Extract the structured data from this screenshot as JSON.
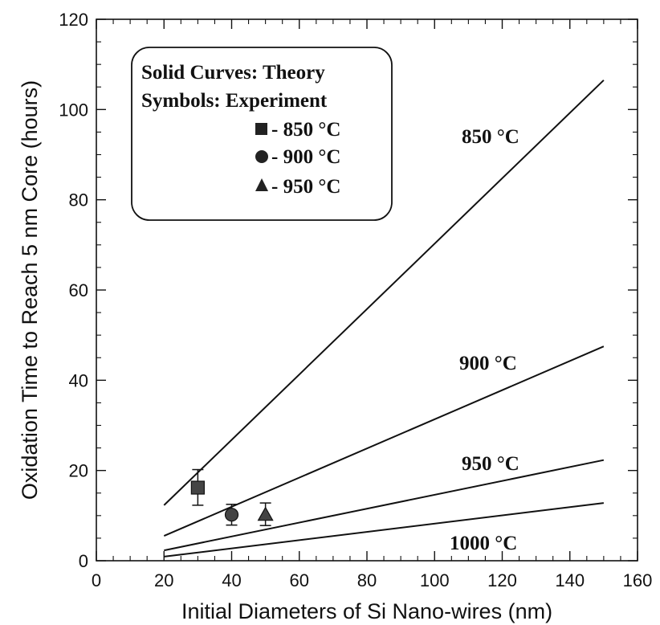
{
  "chart_data": {
    "type": "line",
    "xlabel": "Initial Diameters of Si Nano-wires  (nm)",
    "ylabel": "Oxidation Time to Reach 5 nm Core  (hours)",
    "xlim": [
      0,
      160
    ],
    "ylim": [
      0,
      120
    ],
    "x_ticks": [
      0,
      20,
      40,
      60,
      80,
      100,
      120,
      140,
      160
    ],
    "y_ticks": [
      0,
      20,
      40,
      60,
      80,
      100,
      120
    ],
    "grid": false,
    "legend": {
      "placement": "top-left",
      "line1": "Solid Curves:  Theory",
      "line2": "Symbols:  Experiment",
      "entries": [
        {
          "marker": "square",
          "label": "- 850 °C"
        },
        {
          "marker": "circle",
          "label": "- 900 °C"
        },
        {
          "marker": "triangle",
          "label": "- 950 °C"
        }
      ]
    },
    "series": [
      {
        "name": "850 °C",
        "x": [
          20,
          150
        ],
        "y": [
          12.3,
          106.5
        ]
      },
      {
        "name": "900 °C",
        "x": [
          20,
          150
        ],
        "y": [
          5.5,
          47.5
        ]
      },
      {
        "name": "950 °C",
        "x": [
          20,
          150
        ],
        "y": [
          2.3,
          22.3
        ]
      },
      {
        "name": "1000 °C",
        "x": [
          20,
          150
        ],
        "y": [
          0.9,
          12.8
        ]
      }
    ],
    "experiment": [
      {
        "marker": "square",
        "x": 30,
        "y": 16.2,
        "err_low": 12.3,
        "err_high": 20.2
      },
      {
        "marker": "circle",
        "x": 40,
        "y": 10.2,
        "err_low": 7.9,
        "err_high": 12.5
      },
      {
        "marker": "triangle",
        "x": 50,
        "y": 10.2,
        "err_low": 7.8,
        "err_high": 12.8
      }
    ]
  }
}
